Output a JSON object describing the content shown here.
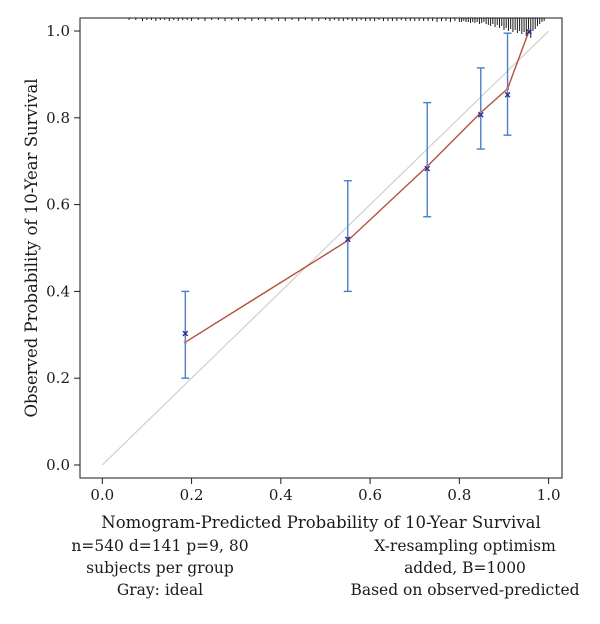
{
  "chart_data": {
    "type": "line",
    "xlabel": "Nomogram-Predicted Probability of 10-Year Survival",
    "ylabel": "Observed Probability of 10-Year Survival",
    "xlim": [
      -0.05,
      1.03
    ],
    "ylim": [
      -0.03,
      1.03
    ],
    "x_ticks": [
      0.0,
      0.2,
      0.4,
      0.6,
      0.8,
      1.0
    ],
    "y_ticks": [
      0.0,
      0.2,
      0.4,
      0.6,
      0.8,
      1.0
    ],
    "x_tick_labels": [
      "0.0",
      "0.2",
      "0.4",
      "0.6",
      "0.8",
      "1.0"
    ],
    "y_tick_labels": [
      "0.0",
      "0.2",
      "0.4",
      "0.6",
      "0.8",
      "1.0"
    ],
    "grid": false,
    "ideal_line": {
      "from": [
        0,
        0
      ],
      "to": [
        1,
        1
      ],
      "color": "#d0d0d0"
    },
    "apparent_line": {
      "color": "#b5523b",
      "points": [
        [
          0.186,
          0.283
        ],
        [
          0.55,
          0.517
        ],
        [
          0.728,
          0.688
        ],
        [
          0.848,
          0.812
        ],
        [
          0.908,
          0.867
        ],
        [
          0.956,
          1.0
        ]
      ]
    },
    "bias_corrected_marks": {
      "color": "#2a2f8f",
      "points": [
        [
          0.186,
          0.303
        ],
        [
          0.55,
          0.52
        ],
        [
          0.728,
          0.683
        ],
        [
          0.848,
          0.807
        ],
        [
          0.908,
          0.853
        ],
        [
          0.956,
          0.998
        ]
      ]
    },
    "error_bars": {
      "color": "#4a7fc8",
      "items": [
        {
          "x": 0.186,
          "low": 0.2,
          "high": 0.4
        },
        {
          "x": 0.55,
          "low": 0.4,
          "high": 0.655
        },
        {
          "x": 0.728,
          "low": 0.572,
          "high": 0.835
        },
        {
          "x": 0.848,
          "low": 0.728,
          "high": 0.915
        },
        {
          "x": 0.908,
          "low": 0.76,
          "high": 0.995
        }
      ]
    },
    "rug": [
      0.06,
      0.075,
      0.09,
      0.1,
      0.11,
      0.12,
      0.13,
      0.14,
      0.15,
      0.16,
      0.17,
      0.18,
      0.19,
      0.2,
      0.215,
      0.23,
      0.245,
      0.26,
      0.275,
      0.29,
      0.305,
      0.32,
      0.335,
      0.35,
      0.365,
      0.38,
      0.395,
      0.41,
      0.425,
      0.44,
      0.455,
      0.47,
      0.485,
      0.5,
      0.51,
      0.52,
      0.53,
      0.54,
      0.55,
      0.56,
      0.57,
      0.58,
      0.59,
      0.6,
      0.61,
      0.62,
      0.63,
      0.64,
      0.65,
      0.66,
      0.67,
      0.68,
      0.69,
      0.7,
      0.71,
      0.72,
      0.73,
      0.74,
      0.75,
      0.76,
      0.77,
      0.78,
      0.79,
      0.8,
      0.805,
      0.81,
      0.815,
      0.82,
      0.825,
      0.83,
      0.835,
      0.84,
      0.845,
      0.85,
      0.855,
      0.86,
      0.865,
      0.87,
      0.875,
      0.88,
      0.885,
      0.89,
      0.895,
      0.9,
      0.905,
      0.91,
      0.915,
      0.92,
      0.925,
      0.93,
      0.935,
      0.94,
      0.945,
      0.95,
      0.955,
      0.96,
      0.965,
      0.97,
      0.975,
      0.98,
      0.985,
      0.99
    ],
    "rug_heights": [
      2,
      2,
      3,
      2,
      2,
      3,
      2,
      2,
      3,
      2,
      3,
      2,
      2,
      3,
      2,
      3,
      2,
      2,
      3,
      2,
      3,
      2,
      3,
      2,
      3,
      2,
      3,
      3,
      2,
      3,
      2,
      3,
      3,
      2,
      3,
      2,
      3,
      3,
      2,
      3,
      3,
      2,
      3,
      3,
      3,
      2,
      3,
      3,
      3,
      3,
      2,
      3,
      3,
      3,
      3,
      3,
      3,
      3,
      4,
      3,
      3,
      4,
      3,
      4,
      4,
      3,
      4,
      4,
      5,
      4,
      5,
      4,
      6,
      5,
      4,
      6,
      7,
      8,
      6,
      9,
      7,
      10,
      8,
      12,
      10,
      13,
      11,
      14,
      12,
      15,
      13,
      16,
      14,
      18,
      15,
      20,
      13,
      11,
      8,
      6,
      4,
      3
    ]
  },
  "annotations": {
    "left": [
      "n=540 d=141 p=9, 80",
      "subjects per group",
      "Gray: ideal"
    ],
    "right": [
      "X-resampling optimism",
      "added, B=1000",
      "Based on observed-predicted"
    ]
  }
}
